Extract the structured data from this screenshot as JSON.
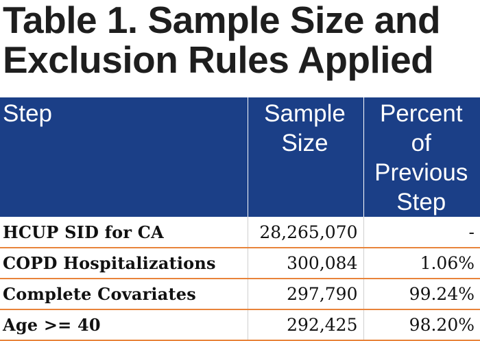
{
  "title": {
    "line1": "Table 1. Sample Size and",
    "line2": "Exclusion Rules Applied"
  },
  "table": {
    "headers": {
      "step": "Step",
      "sample_size_line1": "Sample",
      "sample_size_line2": "Size",
      "percent_line1": "Percent of",
      "percent_line2": "Previous",
      "percent_line3": "Step"
    },
    "rows": [
      {
        "step": "HCUP SID for CA",
        "sample_size": "28,265,070",
        "percent": "-"
      },
      {
        "step": "COPD Hospitalizations",
        "sample_size": "300,084",
        "percent": "1.06%"
      },
      {
        "step": "Complete Covariates",
        "sample_size": "297,790",
        "percent": "99.24%"
      },
      {
        "step": "Age >= 40",
        "sample_size": "292,425",
        "percent": "98.20%"
      }
    ]
  },
  "colors": {
    "header_background": "#1b3f87",
    "row_divider": "#e8833a",
    "title_text": "#1e1e1e"
  }
}
